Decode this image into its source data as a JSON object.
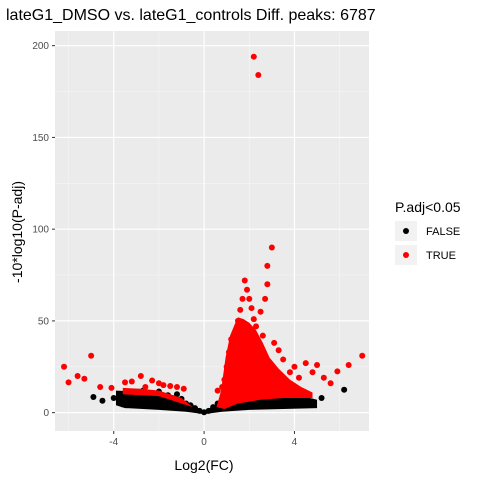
{
  "chart_data": {
    "type": "scatter",
    "title": "lateG1_DMSO vs. lateG1_controls Diff. peaks: 6787",
    "xlabel": "Log2(FC)",
    "ylabel": "-10*log10(P-adj)",
    "xlim": [
      -6.6,
      7.3
    ],
    "ylim": [
      -10,
      208
    ],
    "x_ticks": [
      -4,
      0,
      4
    ],
    "x_tick_labels": [
      "-4",
      "0",
      "4"
    ],
    "y_ticks": [
      0,
      50,
      100,
      150,
      200
    ],
    "y_tick_labels": [
      "0",
      "50",
      "100",
      "150",
      "200"
    ],
    "grid": true,
    "panel_background": "#ebebeb",
    "legend": {
      "title": "P.adj<0.05",
      "placement": "right",
      "entries": [
        {
          "label": "FALSE",
          "color": "#000000"
        },
        {
          "label": "TRUE",
          "color": "#ff0000"
        }
      ]
    },
    "series": [
      {
        "name": "FALSE",
        "color": "#000000",
        "points": [
          [
            -4.9,
            8.5
          ],
          [
            -4.5,
            6.5
          ],
          [
            -4.0,
            8.0
          ],
          [
            -3.6,
            4.5
          ],
          [
            -3.3,
            11.5
          ],
          [
            -3.0,
            9.0
          ],
          [
            -2.7,
            12.0
          ],
          [
            -2.5,
            7.5
          ],
          [
            -2.2,
            10.5
          ],
          [
            -2.0,
            11.5
          ],
          [
            -1.8,
            6.0
          ],
          [
            -1.6,
            9.5
          ],
          [
            -1.4,
            8.0
          ],
          [
            -1.2,
            10.0
          ],
          [
            -1.0,
            7.5
          ],
          [
            -0.8,
            5.0
          ],
          [
            -0.6,
            4.0
          ],
          [
            -0.4,
            2.5
          ],
          [
            -0.2,
            1.0
          ],
          [
            0.0,
            0.2
          ],
          [
            0.2,
            1.0
          ],
          [
            0.4,
            3.0
          ],
          [
            0.6,
            5.0
          ],
          [
            0.8,
            7.5
          ],
          [
            1.0,
            9.5
          ],
          [
            1.3,
            11.0
          ],
          [
            1.6,
            12.0
          ],
          [
            2.0,
            11.5
          ],
          [
            2.4,
            12.5
          ],
          [
            2.8,
            11.0
          ],
          [
            3.2,
            12.0
          ],
          [
            3.6,
            10.5
          ],
          [
            4.0,
            8.5
          ],
          [
            4.4,
            9.5
          ],
          [
            4.8,
            6.0
          ],
          [
            5.2,
            8.0
          ],
          [
            6.2,
            12.5
          ]
        ]
      },
      {
        "name": "TRUE",
        "color": "#ff0000",
        "points": [
          [
            -6.2,
            25.0
          ],
          [
            -6.0,
            16.5
          ],
          [
            -5.6,
            20.0
          ],
          [
            -5.3,
            18.5
          ],
          [
            -5.0,
            31.0
          ],
          [
            -4.6,
            14.0
          ],
          [
            -4.1,
            13.5
          ],
          [
            -3.5,
            16.5
          ],
          [
            -3.2,
            17.0
          ],
          [
            -2.8,
            20.0
          ],
          [
            -2.6,
            14.0
          ],
          [
            -2.3,
            17.5
          ],
          [
            -2.0,
            16.0
          ],
          [
            -1.8,
            15.0
          ],
          [
            -1.5,
            14.5
          ],
          [
            -1.2,
            14.0
          ],
          [
            -0.9,
            13.0
          ],
          [
            0.6,
            12.0
          ],
          [
            0.8,
            14.0
          ],
          [
            0.9,
            18.0
          ],
          [
            1.0,
            25.0
          ],
          [
            1.1,
            33.0
          ],
          [
            1.2,
            40.0
          ],
          [
            1.4,
            45.0
          ],
          [
            1.5,
            50.0
          ],
          [
            1.6,
            56.0
          ],
          [
            1.7,
            62.0
          ],
          [
            1.8,
            72.0
          ],
          [
            1.9,
            67.0
          ],
          [
            2.0,
            62.0
          ],
          [
            2.1,
            57.0
          ],
          [
            2.2,
            51.0
          ],
          [
            2.3,
            47.0
          ],
          [
            2.2,
            194.0
          ],
          [
            2.4,
            184.0
          ],
          [
            2.5,
            55.0
          ],
          [
            2.6,
            42.0
          ],
          [
            2.7,
            62.0
          ],
          [
            2.8,
            70.0
          ],
          [
            2.8,
            80.0
          ],
          [
            3.0,
            90.0
          ],
          [
            3.1,
            38.0
          ],
          [
            3.3,
            34.0
          ],
          [
            3.5,
            29.0
          ],
          [
            3.8,
            22.0
          ],
          [
            4.0,
            25.0
          ],
          [
            4.2,
            19.0
          ],
          [
            4.5,
            27.0
          ],
          [
            4.8,
            22.0
          ],
          [
            5.0,
            26.0
          ],
          [
            5.3,
            19.0
          ],
          [
            5.6,
            16.0
          ],
          [
            5.9,
            22.5
          ],
          [
            6.4,
            26.0
          ],
          [
            7.0,
            31.0
          ],
          [
            1.3,
            20.0
          ],
          [
            1.8,
            26.0
          ],
          [
            2.4,
            30.0
          ],
          [
            2.9,
            24.0
          ],
          [
            3.4,
            18.0
          ]
        ]
      }
    ]
  }
}
